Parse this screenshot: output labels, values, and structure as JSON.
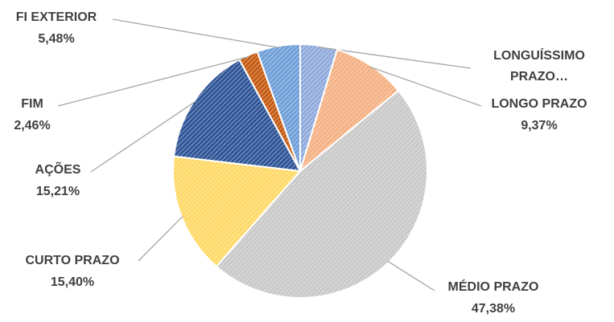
{
  "chart_data": {
    "type": "pie",
    "categories": [
      "LONGUÍSSIMO PRAZO…",
      "LONGO PRAZO",
      "MÉDIO PRAZO",
      "CURTO PRAZO",
      "AÇÕES",
      "FIM",
      "FI EXTERIOR"
    ],
    "values": [
      4.7,
      9.37,
      47.38,
      15.4,
      15.21,
      2.46,
      5.48
    ],
    "value_labels": [
      null,
      "9,37%",
      "47,38%",
      "15,40%",
      "15,21%",
      "2,46%",
      "5,48%"
    ],
    "colors": [
      "#8faadc",
      "#f4b183",
      "#c9c9c9",
      "#ffd966",
      "#2f5597",
      "#c55a11",
      "#6f9fd8"
    ]
  }
}
